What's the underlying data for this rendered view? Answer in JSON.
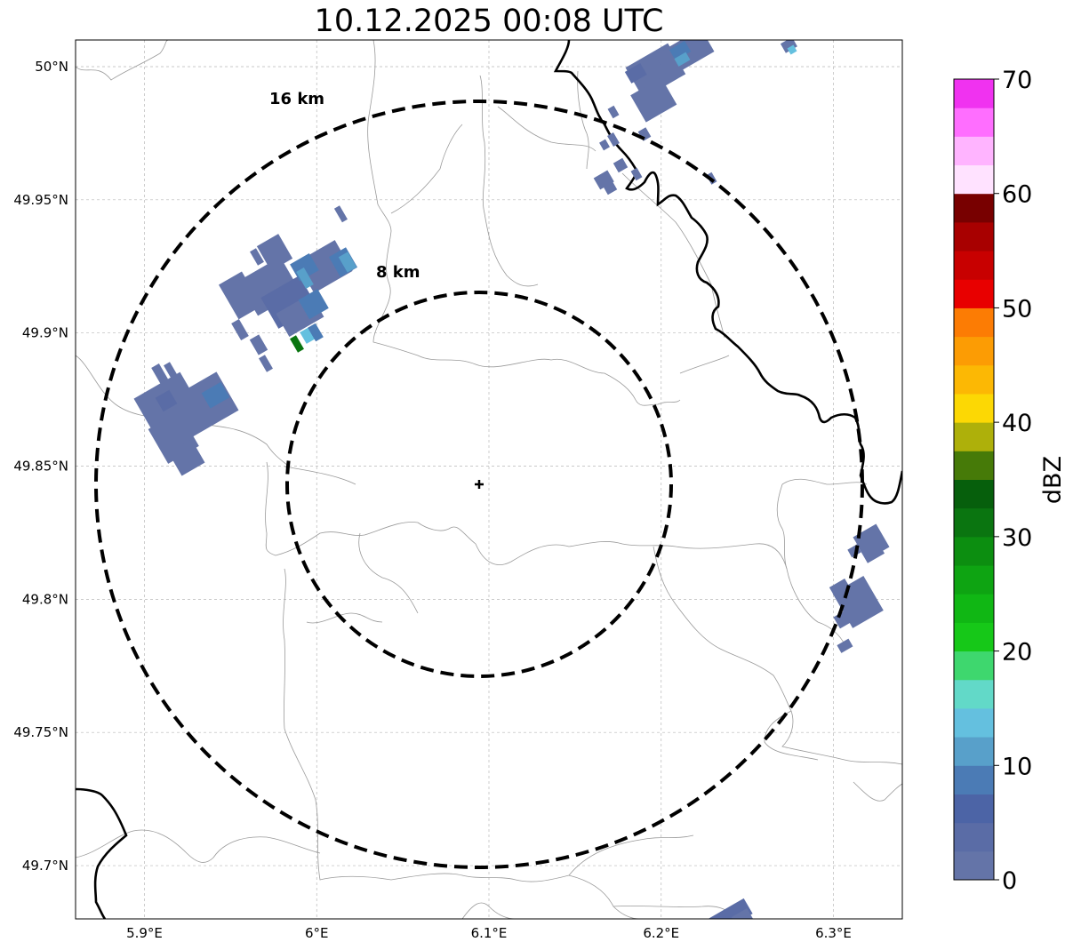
{
  "title": "10.12.2025 00:08 UTC",
  "map": {
    "extent": {
      "lon_min": 5.86,
      "lon_max": 6.34,
      "lat_min": 49.68,
      "lat_max": 50.01
    },
    "radar_center": {
      "lon": 6.095,
      "lat": 49.843
    },
    "lat_ticks": [
      {
        "value": 50.0,
        "label": "50°N"
      },
      {
        "value": 49.95,
        "label": "49.95°N"
      },
      {
        "value": 49.9,
        "label": "49.9°N"
      },
      {
        "value": 49.85,
        "label": "49.85°N"
      },
      {
        "value": 49.8,
        "label": "49.8°N"
      },
      {
        "value": 49.75,
        "label": "49.75°N"
      },
      {
        "value": 49.7,
        "label": "49.7°N"
      }
    ],
    "lon_ticks": [
      {
        "value": 5.9,
        "label": "5.9°E"
      },
      {
        "value": 6.0,
        "label": "6°E"
      },
      {
        "value": 6.1,
        "label": "6.1°E"
      },
      {
        "value": 6.2,
        "label": "6.2°E"
      },
      {
        "value": 6.3,
        "label": "6.3°E"
      }
    ],
    "range_rings": [
      {
        "label": "8 km",
        "radius_km": 8
      },
      {
        "label": "16 km",
        "radius_km": 16
      }
    ]
  },
  "colorbar": {
    "unit": "dBZ",
    "min": 0,
    "max": 70,
    "ticks": [
      {
        "value": 0,
        "label": "0"
      },
      {
        "value": 10,
        "label": "10"
      },
      {
        "value": 20,
        "label": "20"
      },
      {
        "value": 30,
        "label": "30"
      },
      {
        "value": 40,
        "label": "40"
      },
      {
        "value": 50,
        "label": "50"
      },
      {
        "value": 60,
        "label": "60"
      },
      {
        "value": 70,
        "label": "70"
      }
    ],
    "colors": [
      "#6474a8",
      "#5a6ca6",
      "#4c64a6",
      "#4b7bb5",
      "#58a0ca",
      "#64c0df",
      "#62d9c8",
      "#3ed76e",
      "#16c818",
      "#10b714",
      "#0ea412",
      "#0c8e10",
      "#0a7510",
      "#065f0c",
      "#467a08",
      "#aeb00a",
      "#fcd804",
      "#fcb804",
      "#fc9c04",
      "#fc7c04",
      "#e80000",
      "#c80000",
      "#a80000",
      "#780000",
      "#ffe2ff",
      "#ffb4ff",
      "#ff6eff",
      "#f032f0"
    ]
  }
}
